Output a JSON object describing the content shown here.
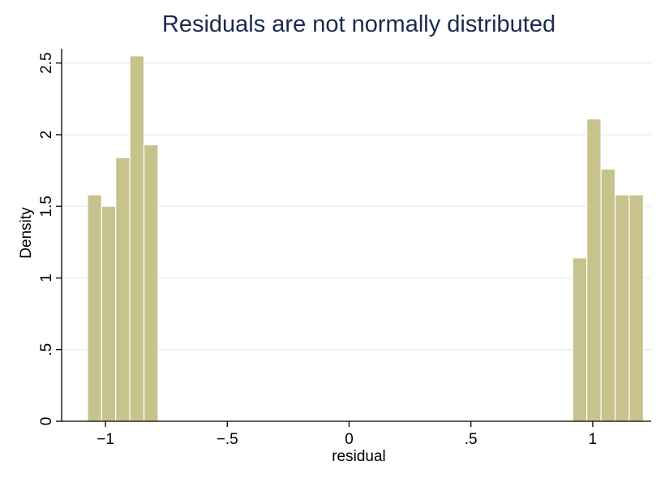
{
  "chart_data": {
    "type": "bar",
    "title": "Residuals are not normally distributed",
    "xlabel": "residual",
    "ylabel": "Density",
    "xlim": [
      -1.18,
      1.24
    ],
    "ylim": [
      0,
      2.6
    ],
    "x_ticks": [
      {
        "value": -1,
        "label": "−1"
      },
      {
        "value": -0.5,
        "label": "−.5"
      },
      {
        "value": 0,
        "label": "0"
      },
      {
        "value": 0.5,
        "label": ".5"
      },
      {
        "value": 1,
        "label": "1"
      }
    ],
    "y_ticks": [
      {
        "value": 0,
        "label": "0"
      },
      {
        "value": 0.5,
        "label": ".5"
      },
      {
        "value": 1,
        "label": "1"
      },
      {
        "value": 1.5,
        "label": "1.5"
      },
      {
        "value": 2,
        "label": "2"
      },
      {
        "value": 2.5,
        "label": "2.5"
      }
    ],
    "grid": true,
    "bin_width": 0.058,
    "bins": [
      {
        "x_start": -1.074,
        "density": 1.58
      },
      {
        "x_start": -1.016,
        "density": 1.5
      },
      {
        "x_start": -0.958,
        "density": 1.84
      },
      {
        "x_start": -0.9,
        "density": 2.55
      },
      {
        "x_start": -0.842,
        "density": 1.93
      },
      {
        "x_start": 0.918,
        "density": 1.14
      },
      {
        "x_start": 0.976,
        "density": 2.11
      },
      {
        "x_start": 1.034,
        "density": 1.76
      },
      {
        "x_start": 1.092,
        "density": 1.58
      },
      {
        "x_start": 1.15,
        "density": 1.58
      }
    ],
    "colors": {
      "bar_fill": "#c8c38c",
      "bar_stroke": "#ffffff",
      "grid": "#e6eaec",
      "axis": "#000000",
      "title": "#1a2a4f"
    }
  }
}
